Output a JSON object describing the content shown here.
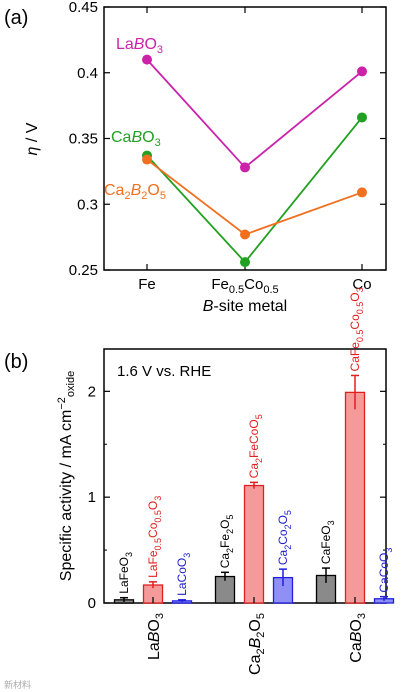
{
  "figure": {
    "panels": [
      "(a)",
      "(b)"
    ],
    "watermark": "新材料"
  },
  "chart_data": [
    {
      "type": "line",
      "panel": "(a)",
      "categories": [
        "Fe",
        "Fe0.5Co0.5",
        "Co"
      ],
      "xlabel": "B-site metal",
      "ylabel": "η / V",
      "ylim": [
        0.25,
        0.45
      ],
      "yticks": [
        0.25,
        0.3,
        0.35,
        0.4,
        0.45
      ],
      "ytick_labels": [
        "0.25",
        "0.3",
        "0.35",
        "0.4",
        "0.45"
      ],
      "grid": false,
      "series": [
        {
          "name": "LaBO3",
          "color": "#cc22aa",
          "values": [
            0.41,
            0.328,
            0.401
          ]
        },
        {
          "name": "CaBO3",
          "color": "#22a022",
          "values": [
            0.337,
            0.256,
            0.366
          ]
        },
        {
          "name": "Ca2B2O5",
          "color": "#f07020",
          "values": [
            0.334,
            0.277,
            0.309
          ]
        }
      ]
    },
    {
      "type": "bar",
      "panel": "(b)",
      "annotation": "1.6 V vs. RHE",
      "ylabel": "Specific activity / mA cm−2oxide",
      "ylim": [
        0,
        2.4
      ],
      "yticks": [
        0,
        1,
        2
      ],
      "ytick_labels": [
        "0",
        "1",
        "2"
      ],
      "grid": false,
      "groups": [
        "LaBO3",
        "Ca2B2O5",
        "CaBO3"
      ],
      "bars": [
        {
          "group": 0,
          "label": "LaFeO3",
          "value": 0.03,
          "error": 0.02,
          "color": "black"
        },
        {
          "group": 0,
          "label": "LaFe0.5Co0.5O3",
          "value": 0.17,
          "error": 0.03,
          "color": "red"
        },
        {
          "group": 0,
          "label": "LaCoO3",
          "value": 0.02,
          "error": 0.01,
          "color": "blue"
        },
        {
          "group": 1,
          "label": "Ca2Fe2O5",
          "value": 0.25,
          "error": 0.04,
          "color": "black"
        },
        {
          "group": 1,
          "label": "Ca2FeCoO5",
          "value": 1.11,
          "error": 0.03,
          "color": "red"
        },
        {
          "group": 1,
          "label": "Ca2Co2O5",
          "value": 0.24,
          "error": 0.08,
          "color": "blue"
        },
        {
          "group": 2,
          "label": "CaFeO3",
          "value": 0.26,
          "error": 0.07,
          "color": "black"
        },
        {
          "group": 2,
          "label": "CaFe0.5Co0.5O3",
          "value": 1.99,
          "error": 0.16,
          "color": "red"
        },
        {
          "group": 2,
          "label": "CaCoO3",
          "value": 0.04,
          "error": 0.02,
          "color": "blue"
        }
      ]
    }
  ]
}
